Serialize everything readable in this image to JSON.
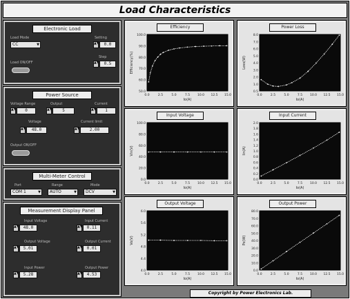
{
  "app": {
    "title": "Load Characteristics",
    "copyright": "Copyright by Power Electronics Lab."
  },
  "electronic_load": {
    "title": "Electronic Load",
    "mode_label": "Load Mode",
    "mode_value": "CC",
    "set1_label": "Setting",
    "set1_value": "0.0",
    "set2_label": "Step",
    "set2_value": "0.5",
    "switch_label": "Load ON/OFF"
  },
  "power_source": {
    "title": "Power Source",
    "f1_label": "Voltage Range",
    "f1_value": "0",
    "f2_label": "Output",
    "f2_value": "5",
    "f3_label": "Current",
    "f3_value": "1",
    "v_label": "Voltage",
    "v_value": "48.0",
    "i_label": "Current limit",
    "i_value": "2.00",
    "switch_label": "Output ON/OFF"
  },
  "multimeter": {
    "title": "Multi-Meter Control",
    "sel1_label": "Port",
    "sel1_value": "COM 1",
    "sel2_label": "Range",
    "sel2_value": "AUTO",
    "sel3_label": "Mode",
    "sel3_value": "DCV"
  },
  "measurement": {
    "title": "Measurement Display Panel",
    "m1_label": "Input Voltage",
    "m1_value": "48.0",
    "m2_label": "Input Current",
    "m2_value": "0.11",
    "m3_label": "Output Voltage",
    "m3_value": "5.01",
    "m4_label": "Output Current",
    "m4_value": "0.01",
    "m5_label": "Input Power",
    "m5_value": "5.28",
    "m6_label": "Output Power",
    "m6_value": "4.53"
  },
  "colors": {
    "plot_bg": "#0a0a0a",
    "trace": "#f4f4f4",
    "panel_bg": "#2d2d2d",
    "frame_bg": "#7a7a7a"
  },
  "chart_data": [
    {
      "type": "line",
      "title": "Efficiency",
      "xlabel": "Io(A)",
      "ylabel": "Efficiency(%)",
      "xlim": [
        0,
        15
      ],
      "ylim": [
        50,
        100
      ],
      "xticks": [
        "0.0",
        "2.5",
        "5.0",
        "7.5",
        "10.0",
        "12.5",
        "15.0"
      ],
      "yticks": [
        "100.0",
        "90.0",
        "80.0",
        "70.0",
        "60.0",
        "50.0"
      ],
      "x": [
        0.3,
        0.6,
        1.0,
        1.5,
        2.0,
        2.5,
        3.0,
        4.0,
        5.0,
        6.0,
        7.5,
        9.0,
        10.5,
        12.0,
        13.5,
        14.8
      ],
      "y": [
        58,
        66,
        72,
        77,
        80,
        82.5,
        84,
        86,
        87.2,
        88,
        88.8,
        89.3,
        89.6,
        89.8,
        90,
        90
      ]
    },
    {
      "type": "line",
      "title": "Power Loss",
      "xlabel": "Io(A)",
      "ylabel": "Loss(W)",
      "xlim": [
        0,
        15
      ],
      "ylim": [
        0.5,
        8.0
      ],
      "xticks": [
        "0.0",
        "2.5",
        "5.0",
        "7.5",
        "10.0",
        "12.5",
        "15.0"
      ],
      "yticks": [
        "8.0",
        "7.0",
        "6.0",
        "5.0",
        "4.0",
        "3.0",
        "2.0",
        "1.0",
        "0.5"
      ],
      "x": [
        0.3,
        1.5,
        2.5,
        3.5,
        5.0,
        6.0,
        7.5,
        9.0,
        10.5,
        12.0,
        13.5,
        14.8
      ],
      "y": [
        2.0,
        1.4,
        1.15,
        1.1,
        1.3,
        1.6,
        2.2,
        3.1,
        4.2,
        5.4,
        6.7,
        7.9
      ]
    },
    {
      "type": "line",
      "title": "Input Voltage",
      "xlabel": "Io(A)",
      "ylabel": "Vin(V)",
      "xlim": [
        0,
        15
      ],
      "ylim": [
        0,
        100
      ],
      "xticks": [
        "0.0",
        "2.5",
        "5.0",
        "7.5",
        "10.0",
        "12.5",
        "15.0"
      ],
      "yticks": [
        "100.0",
        "80.0",
        "60.0",
        "40.0",
        "20.0",
        "0.0"
      ],
      "x": [
        0.3,
        2.5,
        5.0,
        7.5,
        10.0,
        12.5,
        14.8
      ],
      "y": [
        48,
        48,
        48,
        48,
        48,
        48,
        48
      ]
    },
    {
      "type": "line",
      "title": "Input Current",
      "xlabel": "Io(A)",
      "ylabel": "Iin(A)",
      "xlim": [
        0,
        15
      ],
      "ylim": [
        0,
        2.0
      ],
      "xticks": [
        "0.0",
        "2.5",
        "5.0",
        "7.5",
        "10.0",
        "12.5",
        "15.0"
      ],
      "yticks": [
        "2.0",
        "1.8",
        "1.6",
        "1.4",
        "1.2",
        "1.0",
        "0.8",
        "0.6",
        "0.4",
        "0.2",
        "0.0"
      ],
      "x": [
        0.3,
        2.5,
        5.0,
        7.5,
        10.0,
        12.5,
        14.8
      ],
      "y": [
        0.11,
        0.33,
        0.58,
        0.84,
        1.1,
        1.38,
        1.66
      ]
    },
    {
      "type": "line",
      "title": "Output Voltage",
      "xlabel": "Io(A)",
      "ylabel": "Vo(V)",
      "xlim": [
        0,
        15
      ],
      "ylim": [
        4.0,
        6.0
      ],
      "xticks": [
        "0.0",
        "2.5",
        "5.0",
        "7.5",
        "10.0",
        "12.5",
        "15.0"
      ],
      "yticks": [
        "6.0",
        "5.6",
        "5.2",
        "4.8",
        "4.4",
        "4.0"
      ],
      "x": [
        0.3,
        2.5,
        5.0,
        7.5,
        10.0,
        12.5,
        14.8
      ],
      "y": [
        5.01,
        5.01,
        5.0,
        5.0,
        5.0,
        4.99,
        4.99
      ]
    },
    {
      "type": "line",
      "title": "Output Power",
      "xlabel": "Io(A)",
      "ylabel": "Po(W)",
      "xlim": [
        0,
        15
      ],
      "ylim": [
        0,
        80
      ],
      "xticks": [
        "0.0",
        "2.5",
        "5.0",
        "7.5",
        "10.0",
        "12.5",
        "15.0"
      ],
      "yticks": [
        "80.0",
        "70.0",
        "60.0",
        "50.0",
        "40.0",
        "30.0",
        "20.0",
        "10.0",
        "0.0"
      ],
      "x": [
        0.3,
        2.5,
        5.0,
        7.5,
        10.0,
        12.5,
        14.8
      ],
      "y": [
        1.5,
        12.5,
        25,
        37.5,
        50,
        62.4,
        73.9
      ]
    }
  ]
}
